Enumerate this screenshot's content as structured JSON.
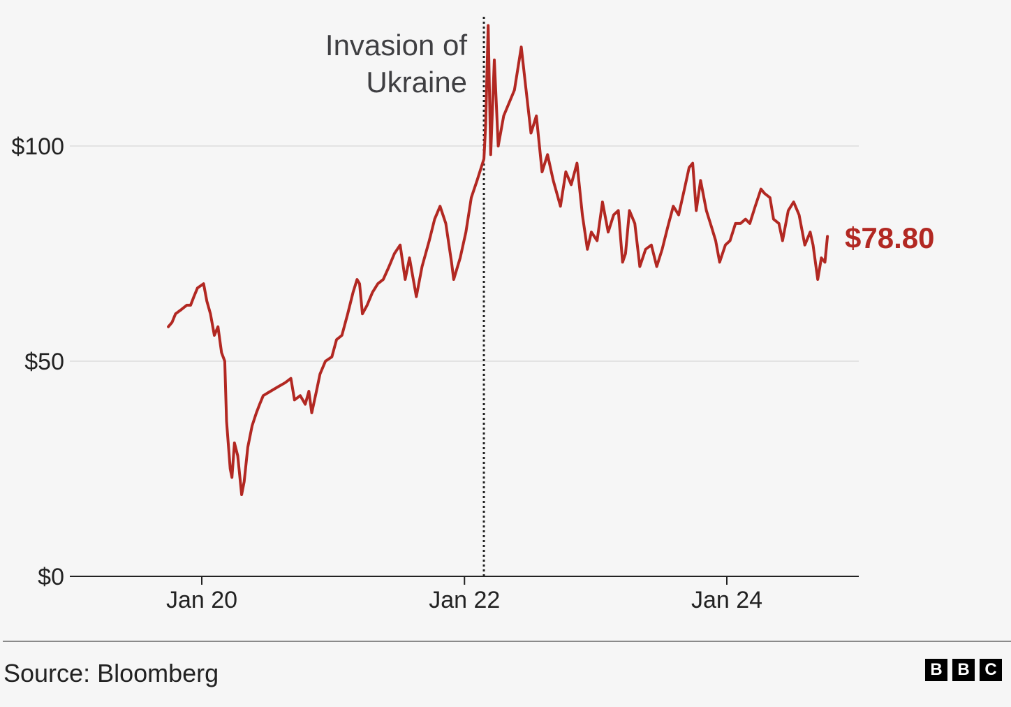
{
  "chart_data": {
    "type": "line",
    "title": "",
    "xlabel": "",
    "ylabel": "",
    "ylim": [
      0,
      125
    ],
    "xlim": [
      "2019-01-01",
      "2025-01-01"
    ],
    "y_ticks": [
      {
        "value": 0,
        "label": "$0"
      },
      {
        "value": 50,
        "label": "$50"
      },
      {
        "value": 100,
        "label": "$100"
      }
    ],
    "x_ticks": [
      {
        "value": "2020-01-01",
        "label": "Jan 20"
      },
      {
        "value": "2022-01-01",
        "label": "Jan 22"
      },
      {
        "value": "2024-01-01",
        "label": "Jan 24"
      }
    ],
    "grid": "horizontal",
    "series": [
      {
        "color": "#b22822",
        "points": [
          [
            "2019-09-30",
            58
          ],
          [
            "2019-10-10",
            59
          ],
          [
            "2019-10-20",
            61
          ],
          [
            "2019-11-05",
            62
          ],
          [
            "2019-11-20",
            63
          ],
          [
            "2019-12-01",
            63
          ],
          [
            "2019-12-10",
            65
          ],
          [
            "2019-12-20",
            67
          ],
          [
            "2020-01-06",
            68
          ],
          [
            "2020-01-15",
            64
          ],
          [
            "2020-01-25",
            61
          ],
          [
            "2020-02-05",
            56
          ],
          [
            "2020-02-15",
            58
          ],
          [
            "2020-02-25",
            52
          ],
          [
            "2020-03-05",
            50
          ],
          [
            "2020-03-10",
            36
          ],
          [
            "2020-03-20",
            25
          ],
          [
            "2020-03-25",
            23
          ],
          [
            "2020-04-01",
            31
          ],
          [
            "2020-04-10",
            28
          ],
          [
            "2020-04-15",
            24
          ],
          [
            "2020-04-21",
            19
          ],
          [
            "2020-04-28",
            22
          ],
          [
            "2020-05-08",
            30
          ],
          [
            "2020-05-20",
            35
          ],
          [
            "2020-06-01",
            38
          ],
          [
            "2020-06-10",
            40
          ],
          [
            "2020-06-20",
            42
          ],
          [
            "2020-07-10",
            43
          ],
          [
            "2020-07-30",
            44
          ],
          [
            "2020-08-20",
            45
          ],
          [
            "2020-09-05",
            46
          ],
          [
            "2020-09-15",
            41
          ],
          [
            "2020-10-01",
            42
          ],
          [
            "2020-10-15",
            40
          ],
          [
            "2020-10-25",
            43
          ],
          [
            "2020-11-02",
            38
          ],
          [
            "2020-11-15",
            43
          ],
          [
            "2020-11-25",
            47
          ],
          [
            "2020-12-10",
            50
          ],
          [
            "2020-12-28",
            51
          ],
          [
            "2021-01-10",
            55
          ],
          [
            "2021-01-25",
            56
          ],
          [
            "2021-02-10",
            61
          ],
          [
            "2021-02-25",
            66
          ],
          [
            "2021-03-08",
            69
          ],
          [
            "2021-03-15",
            68
          ],
          [
            "2021-03-23",
            61
          ],
          [
            "2021-04-05",
            63
          ],
          [
            "2021-04-20",
            66
          ],
          [
            "2021-05-05",
            68
          ],
          [
            "2021-05-20",
            69
          ],
          [
            "2021-06-05",
            72
          ],
          [
            "2021-06-20",
            75
          ],
          [
            "2021-07-06",
            77
          ],
          [
            "2021-07-20",
            69
          ],
          [
            "2021-08-01",
            74
          ],
          [
            "2021-08-20",
            65
          ],
          [
            "2021-09-05",
            72
          ],
          [
            "2021-09-25",
            78
          ],
          [
            "2021-10-10",
            83
          ],
          [
            "2021-10-25",
            86
          ],
          [
            "2021-11-10",
            82
          ],
          [
            "2021-11-26",
            73
          ],
          [
            "2021-12-02",
            69
          ],
          [
            "2021-12-20",
            74
          ],
          [
            "2022-01-05",
            80
          ],
          [
            "2022-01-20",
            88
          ],
          [
            "2022-02-05",
            92
          ],
          [
            "2022-02-24",
            97
          ],
          [
            "2022-03-01",
            105
          ],
          [
            "2022-03-08",
            128
          ],
          [
            "2022-03-15",
            98
          ],
          [
            "2022-03-25",
            120
          ],
          [
            "2022-04-05",
            100
          ],
          [
            "2022-04-20",
            107
          ],
          [
            "2022-05-05",
            110
          ],
          [
            "2022-05-20",
            113
          ],
          [
            "2022-06-08",
            123
          ],
          [
            "2022-06-20",
            114
          ],
          [
            "2022-07-05",
            103
          ],
          [
            "2022-07-20",
            107
          ],
          [
            "2022-08-05",
            94
          ],
          [
            "2022-08-20",
            98
          ],
          [
            "2022-09-05",
            92
          ],
          [
            "2022-09-25",
            86
          ],
          [
            "2022-10-10",
            94
          ],
          [
            "2022-10-25",
            91
          ],
          [
            "2022-11-10",
            96
          ],
          [
            "2022-11-25",
            84
          ],
          [
            "2022-12-09",
            76
          ],
          [
            "2022-12-20",
            80
          ],
          [
            "2023-01-05",
            78
          ],
          [
            "2023-01-20",
            87
          ],
          [
            "2023-02-05",
            80
          ],
          [
            "2023-02-20",
            84
          ],
          [
            "2023-03-05",
            85
          ],
          [
            "2023-03-17",
            73
          ],
          [
            "2023-03-25",
            75
          ],
          [
            "2023-04-05",
            85
          ],
          [
            "2023-04-20",
            82
          ],
          [
            "2023-05-04",
            72
          ],
          [
            "2023-05-20",
            76
          ],
          [
            "2023-06-05",
            77
          ],
          [
            "2023-06-20",
            72
          ],
          [
            "2023-07-05",
            76
          ],
          [
            "2023-07-20",
            81
          ],
          [
            "2023-08-05",
            86
          ],
          [
            "2023-08-20",
            84
          ],
          [
            "2023-09-05",
            90
          ],
          [
            "2023-09-18",
            95
          ],
          [
            "2023-09-28",
            96
          ],
          [
            "2023-10-08",
            85
          ],
          [
            "2023-10-20",
            92
          ],
          [
            "2023-11-05",
            85
          ],
          [
            "2023-11-20",
            81
          ],
          [
            "2023-12-01",
            78
          ],
          [
            "2023-12-12",
            73
          ],
          [
            "2023-12-28",
            77
          ],
          [
            "2024-01-10",
            78
          ],
          [
            "2024-01-25",
            82
          ],
          [
            "2024-02-08",
            82
          ],
          [
            "2024-02-22",
            83
          ],
          [
            "2024-03-05",
            82
          ],
          [
            "2024-03-20",
            86
          ],
          [
            "2024-04-05",
            90
          ],
          [
            "2024-04-15",
            89
          ],
          [
            "2024-04-30",
            88
          ],
          [
            "2024-05-10",
            83
          ],
          [
            "2024-05-25",
            82
          ],
          [
            "2024-06-04",
            78
          ],
          [
            "2024-06-20",
            85
          ],
          [
            "2024-07-05",
            87
          ],
          [
            "2024-07-20",
            84
          ],
          [
            "2024-08-05",
            77
          ],
          [
            "2024-08-20",
            80
          ],
          [
            "2024-08-28",
            77
          ],
          [
            "2024-09-10",
            69
          ],
          [
            "2024-09-20",
            74
          ],
          [
            "2024-09-30",
            73
          ],
          [
            "2024-10-07",
            79
          ]
        ]
      }
    ],
    "annotations": [
      {
        "date": "2022-02-24",
        "lines": [
          "Invasion of",
          "Ukraine"
        ]
      }
    ],
    "last_value_label": "$78.80"
  },
  "footer": {
    "source": "Source: Bloomberg",
    "logo_letters": [
      "B",
      "B",
      "C"
    ]
  }
}
